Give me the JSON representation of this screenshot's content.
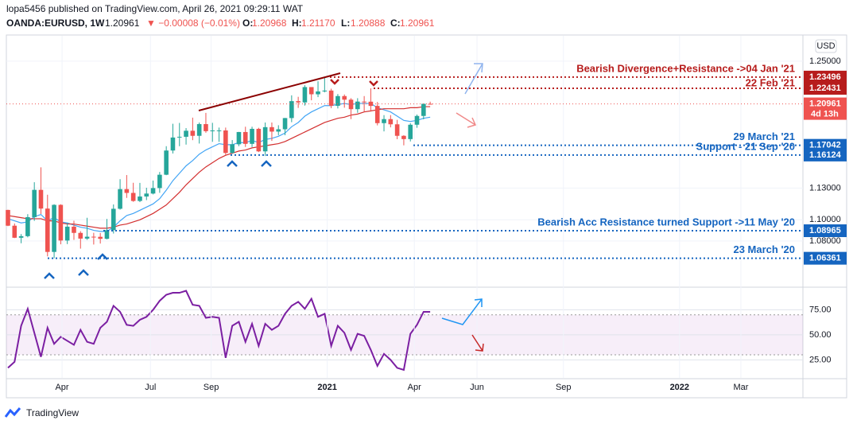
{
  "header": {
    "publisher": "lopa5456 published on TradingView.com, April 26, 2021 09:29:11 WAT",
    "symbol": "OANDA:EURUSD, 1W",
    "last": "1.20961",
    "change": "▼ −0.00008 (−0.01%)",
    "ohlc": [
      "O:",
      "1.20968",
      "H:",
      "1.21170",
      "L:",
      "1.20888",
      "C:",
      "1.20961"
    ],
    "logo": "TradingView"
  },
  "chart_data": [
    {
      "type": "candlestick",
      "y_axis_label": "USD",
      "up_color": "#26a69a",
      "down_color": "#ef5350",
      "ylim": [
        1.037,
        1.274
      ],
      "yticks": [
        {
          "value": 1.25,
          "label": "1.25000"
        },
        {
          "value": 1.13,
          "label": "1.13000"
        },
        {
          "value": 1.1,
          "label": "1.10000"
        },
        {
          "value": 1.08,
          "label": "1.08000"
        }
      ],
      "xlim": [
        -0.24,
        120.5
      ],
      "xticks": [
        {
          "value": 8.2,
          "label": "Apr"
        },
        {
          "value": 21.6,
          "label": "Jul"
        },
        {
          "value": 30.8,
          "label": "Sep"
        },
        {
          "value": 48.4,
          "label": "2021"
        },
        {
          "value": 61.6,
          "label": "Apr"
        },
        {
          "value": 71.1,
          "label": "Jun"
        },
        {
          "value": 84.2,
          "label": "Sep"
        },
        {
          "value": 101.8,
          "label": "2022"
        },
        {
          "value": 111.1,
          "label": "Mar"
        }
      ],
      "series": [
        {
          "open": [
            1.1093,
            1.0944,
            1.083,
            1.0845,
            1.1025,
            1.1283,
            1.1106,
            1.0696,
            1.1141,
            1.0804,
            1.0935,
            1.0876,
            1.0822,
            1.084,
            1.0839,
            1.082,
            1.0902,
            1.1104,
            1.129,
            1.1254,
            1.1178,
            1.122,
            1.1248,
            1.13,
            1.1426,
            1.1655,
            1.1778,
            1.1785,
            1.1842,
            1.1794,
            1.1905,
            1.1838,
            1.1845,
            1.1845,
            1.1632,
            1.1714,
            1.183,
            1.1718,
            1.186,
            1.1647,
            1.1876,
            1.1834,
            1.1856,
            1.1962,
            1.2122,
            1.211,
            1.2255,
            1.2187,
            1.2214,
            1.2222,
            1.2078,
            1.217,
            1.2136,
            1.2046,
            1.2118,
            1.2117,
            1.2077,
            1.1914,
            1.1952,
            1.1903,
            1.1794,
            1.1763,
            1.1899,
            1.1982,
            1.20968
          ],
          "high": [
            1.1095,
            1.0965,
            1.0865,
            1.1053,
            1.1355,
            1.1496,
            1.1237,
            1.1147,
            1.1147,
            1.0969,
            1.0991,
            1.0892,
            1.1019,
            1.0877,
            1.0875,
            1.1008,
            1.1145,
            1.1384,
            1.1423,
            1.135,
            1.1349,
            1.1303,
            1.1371,
            1.1452,
            1.1696,
            1.1908,
            1.1916,
            1.1867,
            1.1966,
            1.192,
            1.2011,
            1.1917,
            1.1872,
            1.1872,
            1.1754,
            1.1831,
            1.188,
            1.188,
            1.187,
            1.192,
            1.192,
            1.1894,
            1.1963,
            1.2177,
            1.2163,
            1.2273,
            1.2254,
            1.231,
            1.2349,
            1.224,
            1.2189,
            1.2185,
            1.215,
            1.215,
            1.217,
            1.2243,
            1.2114,
            1.199,
            1.199,
            1.1945,
            1.18,
            1.1914,
            1.1995,
            1.21,
            1.2117
          ],
          "low": [
            1.094,
            1.0827,
            1.0778,
            1.0834,
            1.099,
            1.1055,
            1.0654,
            1.0636,
            1.0768,
            1.077,
            1.081,
            1.0727,
            1.081,
            1.0766,
            1.0775,
            1.0815,
            1.087,
            1.1096,
            1.1207,
            1.117,
            1.1167,
            1.1186,
            1.124,
            1.1255,
            1.1422,
            1.1627,
            1.1696,
            1.1711,
            1.1753,
            1.1721,
            1.1823,
            1.1737,
            1.1737,
            1.1612,
            1.1624,
            1.1696,
            1.1689,
            1.1688,
            1.164,
            1.1603,
            1.1746,
            1.18,
            1.18,
            1.1923,
            1.2058,
            1.208,
            1.213,
            1.216,
            1.2205,
            1.2055,
            1.2053,
            1.206,
            1.1952,
            1.2012,
            1.2023,
            1.2023,
            1.1893,
            1.1836,
            1.1874,
            1.1762,
            1.1704,
            1.1741,
            1.187,
            1.195,
            1.20888
          ],
          "close": [
            1.0944,
            1.083,
            1.0845,
            1.1025,
            1.1283,
            1.1106,
            1.0696,
            1.1141,
            1.0804,
            1.0935,
            1.0876,
            1.0822,
            1.084,
            1.0839,
            1.082,
            1.0902,
            1.1104,
            1.129,
            1.1254,
            1.1178,
            1.122,
            1.1248,
            1.13,
            1.1426,
            1.1655,
            1.1778,
            1.1785,
            1.1842,
            1.1794,
            1.1905,
            1.1838,
            1.1845,
            1.1845,
            1.1632,
            1.1714,
            1.183,
            1.1718,
            1.186,
            1.1647,
            1.1876,
            1.1834,
            1.1856,
            1.1962,
            1.2122,
            1.211,
            1.2255,
            1.2187,
            1.2214,
            1.2222,
            1.2078,
            1.217,
            1.2136,
            1.2046,
            1.2118,
            1.2117,
            1.2077,
            1.1914,
            1.1952,
            1.1903,
            1.1794,
            1.1763,
            1.1899,
            1.1982,
            1.20969,
            1.20961
          ]
        }
      ],
      "lines": [
        {
          "color": "#42a5f5",
          "values": [
            1.101,
            1.099,
            1.097,
            1.098,
            1.103,
            1.105,
            1.099,
            1.102,
            1.098,
            1.097,
            1.095,
            1.093,
            1.092,
            1.09,
            1.089,
            1.089,
            1.093,
            1.099,
            1.104,
            1.106,
            1.109,
            1.112,
            1.115,
            1.12,
            1.128,
            1.137,
            1.144,
            1.151,
            1.156,
            1.162,
            1.166,
            1.169,
            1.172,
            1.171,
            1.171,
            1.173,
            1.173,
            1.175,
            1.173,
            1.176,
            1.177,
            1.179,
            1.182,
            1.188,
            1.192,
            1.198,
            1.202,
            1.205,
            1.208,
            1.208,
            1.209,
            1.21,
            1.209,
            1.21,
            1.21,
            1.21,
            1.206,
            1.204,
            1.202,
            1.198,
            1.194,
            1.193,
            1.194,
            1.196,
            1.197
          ]
        },
        {
          "color": "#d32f2f",
          "values": [
            1.104,
            1.103,
            1.102,
            1.101,
            1.101,
            1.101,
            1.099,
            1.099,
            1.097,
            1.096,
            1.096,
            1.095,
            1.094,
            1.093,
            1.092,
            1.092,
            1.093,
            1.095,
            1.096,
            1.098,
            1.1,
            1.103,
            1.106,
            1.11,
            1.114,
            1.12,
            1.126,
            1.133,
            1.139,
            1.145,
            1.15,
            1.154,
            1.158,
            1.161,
            1.163,
            1.165,
            1.166,
            1.168,
            1.169,
            1.17,
            1.171,
            1.172,
            1.174,
            1.177,
            1.18,
            1.183,
            1.186,
            1.189,
            1.192,
            1.194,
            1.196,
            1.197,
            1.199,
            1.2,
            1.202,
            1.203,
            1.204,
            1.205,
            1.205,
            1.205,
            1.205,
            1.206,
            1.206,
            1.207,
            1.207
          ]
        }
      ],
      "annotations": [
        {
          "text": "Bearish Divergence+Resistance ->04 Jan '21",
          "value": 1.23496,
          "color": "#b71c1c"
        },
        {
          "text": "22 Feb '21",
          "value": 1.22431,
          "color": "#b71c1c"
        },
        {
          "value": 1.20961,
          "extra": "4d 13h",
          "color": "#ef5350"
        },
        {
          "text": "29 March '21",
          "value": 1.17042,
          "color": "#1565c0"
        },
        {
          "text": "Support - 21 Sep '20",
          "value": 1.16124,
          "color": "#1565c0"
        },
        {
          "text": "Bearish Acc Resistance turned Support ->11 May '20",
          "value": 1.08965,
          "color": "#1565c0"
        },
        {
          "text": "23 March '20",
          "value": 1.06361,
          "color": "#1565c0"
        }
      ]
    },
    {
      "type": "line",
      "color": "#7b1fa2",
      "band": [
        30,
        70
      ],
      "band_color": "#9c27b0",
      "ylim": [
        7,
        96
      ],
      "yticks": [
        {
          "value": 75,
          "label": "75.00"
        },
        {
          "value": 50,
          "label": "50.00"
        },
        {
          "value": 25,
          "label": "25.00"
        }
      ],
      "values": [
        17,
        23,
        59,
        76,
        52,
        28,
        57,
        41,
        48,
        44,
        40,
        55,
        43,
        41,
        57,
        63,
        79,
        73,
        60,
        59,
        65,
        68,
        75,
        84,
        90,
        92,
        92,
        94,
        80,
        79,
        67,
        68,
        67,
        27,
        59,
        63,
        43,
        61,
        39,
        61,
        55,
        59,
        71,
        79,
        83,
        76,
        86,
        68,
        71,
        39,
        59,
        52,
        35,
        51,
        49,
        35,
        19,
        31,
        25,
        17,
        15,
        51,
        60,
        73,
        73
      ]
    }
  ]
}
